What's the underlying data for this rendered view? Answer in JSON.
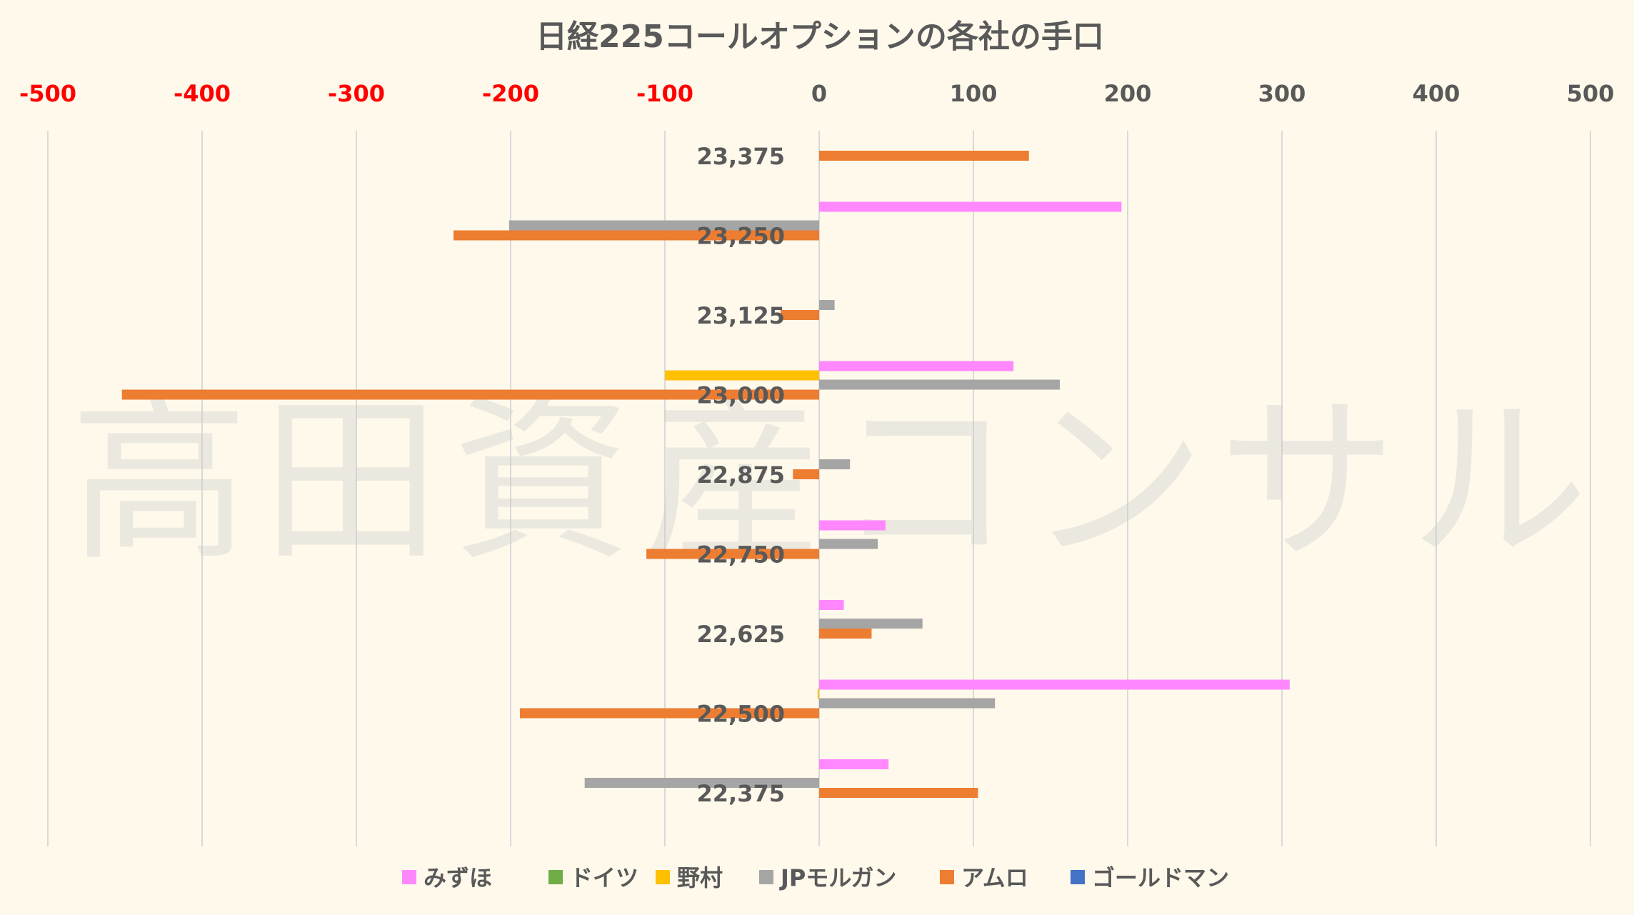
{
  "watermark": "高田資産コンサル",
  "colors": {
    "background": "#fef9eb",
    "grid": "#d9d9d9",
    "negative_tick": "#ff0000",
    "positive_tick": "#595959"
  },
  "chart_data": {
    "type": "bar",
    "orientation": "horizontal",
    "title": "日経225コールオプションの各社の手口",
    "xlim": [
      -500,
      500
    ],
    "x_ticks": [
      "-500",
      "-400",
      "-300",
      "-200",
      "-100",
      "0",
      "100",
      "200",
      "300",
      "400",
      "500"
    ],
    "x_tick_values": [
      -500,
      -400,
      -300,
      -200,
      -100,
      0,
      100,
      200,
      300,
      400,
      500
    ],
    "x_axis_position": "top",
    "grid": true,
    "legend_position": "bottom",
    "categories": [
      "23,375",
      "23,250",
      "23,125",
      "23,000",
      "22,875",
      "22,750",
      "22,625",
      "22,500",
      "22,375"
    ],
    "series": [
      {
        "name": "みずほ",
        "color": "#ff88ff",
        "values": [
          0,
          196,
          0,
          126,
          0,
          43,
          16,
          305,
          45
        ]
      },
      {
        "name": "ドイツ",
        "color": "#70ad47",
        "values": [
          0,
          0,
          0,
          0,
          0,
          0,
          0,
          0,
          0
        ]
      },
      {
        "name": "野村",
        "color": "#ffc000",
        "values": [
          0,
          0,
          0,
          -100,
          0,
          0,
          0,
          -1,
          0
        ]
      },
      {
        "name": "JPモルガン",
        "color": "#a5a5a5",
        "values": [
          0,
          -201,
          10,
          156,
          20,
          38,
          67,
          114,
          -152
        ]
      },
      {
        "name": "アムロ",
        "color": "#ed7d31",
        "values": [
          136,
          -237,
          -25,
          -452,
          -17,
          -112,
          34,
          -194,
          103
        ]
      },
      {
        "name": "ゴールドマン",
        "color": "#4472c4",
        "values": [
          0,
          0,
          0,
          0,
          0,
          0,
          0,
          0,
          0
        ]
      }
    ]
  }
}
